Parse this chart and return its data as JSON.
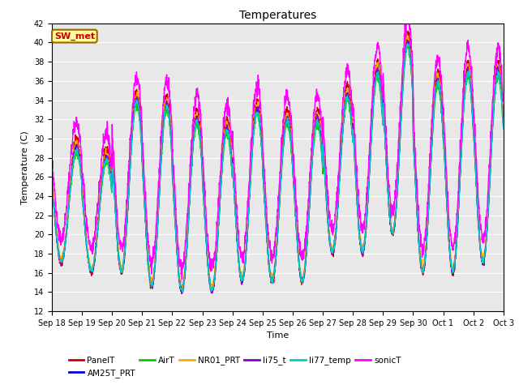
{
  "title": "Temperatures",
  "ylabel": "Temperature (C)",
  "xlabel": "Time",
  "ylim": [
    12,
    42
  ],
  "yticks": [
    12,
    14,
    16,
    18,
    20,
    22,
    24,
    26,
    28,
    30,
    32,
    34,
    36,
    38,
    40,
    42
  ],
  "series_order": [
    "PanelT",
    "AM25T_PRT",
    "AirT",
    "NR01_PRT",
    "li75_t",
    "li77_temp",
    "sonicT"
  ],
  "series": {
    "PanelT": {
      "color": "#cc0000",
      "lw": 1.0
    },
    "AM25T_PRT": {
      "color": "#0000cc",
      "lw": 1.0
    },
    "AirT": {
      "color": "#00cc00",
      "lw": 1.0
    },
    "NR01_PRT": {
      "color": "#ffaa00",
      "lw": 1.0
    },
    "li75_t": {
      "color": "#8800cc",
      "lw": 1.0
    },
    "li77_temp": {
      "color": "#00cccc",
      "lw": 1.0
    },
    "sonicT": {
      "color": "#ff00ff",
      "lw": 1.0
    }
  },
  "annotation": {
    "text": "SW_met",
    "color": "#cc0000",
    "bg": "#ffff99",
    "border": "#996600",
    "fontsize": 8,
    "fontweight": "bold"
  },
  "bg_color": "#e8e8e8",
  "n_days": 15,
  "ticks_labels": [
    "Sep 18",
    "Sep 19",
    "Sep 20",
    "Sep 21",
    "Sep 22",
    "Sep 23",
    "Sep 24",
    "Sep 25",
    "Sep 26",
    "Sep 27",
    "Sep 28",
    "Sep 29",
    "Sep 30",
    "Oct 1",
    "Oct 2",
    "Oct 3"
  ],
  "day_peaks": [
    30.0,
    29.0,
    35.0,
    34.5,
    33.0,
    32.0,
    34.0,
    33.0,
    33.0,
    35.5,
    38.0,
    41.0,
    37.0,
    38.0,
    38.0
  ],
  "day_nights": [
    17.0,
    16.0,
    16.0,
    14.5,
    14.0,
    14.0,
    15.0,
    15.0,
    15.0,
    18.0,
    18.0,
    20.0,
    16.0,
    16.0,
    17.0
  ],
  "offsets": {
    "PanelT": {
      "peak": 0.0,
      "night": 0.0,
      "noise": 0.2
    },
    "AM25T_PRT": {
      "peak": -1.0,
      "night": 0.2,
      "noise": 0.15
    },
    "AirT": {
      "peak": -1.5,
      "night": 0.3,
      "noise": 0.2
    },
    "NR01_PRT": {
      "peak": -0.5,
      "night": 0.5,
      "noise": 0.2
    },
    "li75_t": {
      "peak": -0.8,
      "night": 0.1,
      "noise": 0.15
    },
    "li77_temp": {
      "peak": -1.2,
      "night": 0.2,
      "noise": 0.15
    },
    "sonicT": {
      "peak": 1.5,
      "night": 2.5,
      "noise": 0.4
    }
  }
}
